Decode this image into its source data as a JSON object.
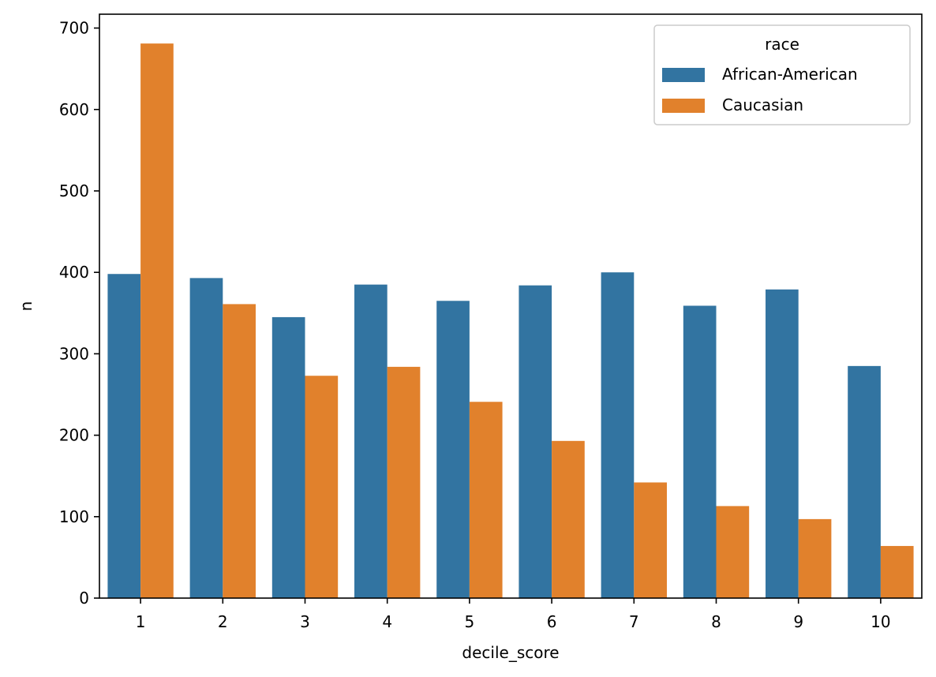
{
  "chart_data": {
    "type": "bar",
    "title": "",
    "xlabel": "decile_score",
    "ylabel": "n",
    "categories": [
      "1",
      "2",
      "3",
      "4",
      "5",
      "6",
      "7",
      "8",
      "9",
      "10"
    ],
    "ylim": [
      0,
      717
    ],
    "yticks": [
      0,
      100,
      200,
      300,
      400,
      500,
      600,
      700
    ],
    "grid": false,
    "legend": {
      "title": "race",
      "position": "top-right"
    },
    "series": [
      {
        "name": "African-American",
        "color": "#3274a1",
        "values": [
          398,
          393,
          345,
          385,
          365,
          384,
          400,
          359,
          379,
          285
        ]
      },
      {
        "name": "Caucasian",
        "color": "#e1812c",
        "values": [
          681,
          361,
          273,
          284,
          241,
          193,
          142,
          113,
          97,
          64
        ]
      }
    ]
  }
}
